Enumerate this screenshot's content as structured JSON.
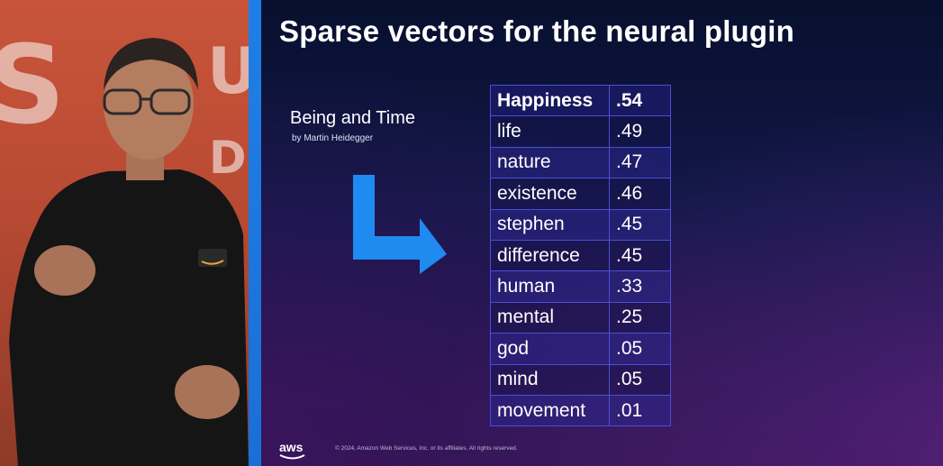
{
  "slide": {
    "title": "Sparse vectors for the neural plugin",
    "book": {
      "title": "Being and Time",
      "author": "by Martin Heidegger"
    },
    "arrow_icon": "corner-down-right-arrow-icon",
    "vector_table": [
      {
        "term": "Happiness",
        "weight": ".54"
      },
      {
        "term": "life",
        "weight": ".49"
      },
      {
        "term": "nature",
        "weight": ".47"
      },
      {
        "term": "existence",
        "weight": ".46"
      },
      {
        "term": "stephen",
        "weight": ".45"
      },
      {
        "term": "difference",
        "weight": ".45"
      },
      {
        "term": "human",
        "weight": ".33"
      },
      {
        "term": "mental",
        "weight": ".25"
      },
      {
        "term": "god",
        "weight": ".05"
      },
      {
        "term": "mind",
        "weight": ".05"
      },
      {
        "term": "movement",
        "weight": ".01"
      }
    ],
    "footer": {
      "logo_text": "aws",
      "copyright": "© 2024, Amazon Web Services, Inc. or its affiliates. All rights reserved."
    }
  },
  "colors": {
    "accent_blue": "#1f8af0",
    "table_border": "#4a4fd6",
    "backdrop_orange": "#c8553a"
  }
}
